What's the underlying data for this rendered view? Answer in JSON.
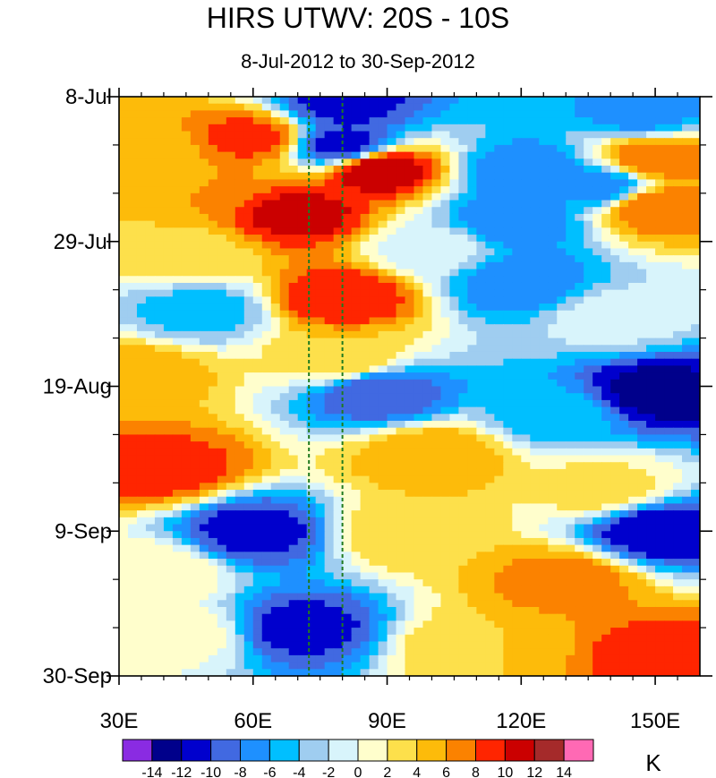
{
  "chart_data": {
    "type": "heatmap",
    "title": "HIRS UTWV: 20S - 10S",
    "subtitle": "8-Jul-2012 to 30-Sep-2012",
    "x_axis": {
      "range": [
        30,
        160
      ],
      "ticks": [
        {
          "value": 30,
          "label": "30E"
        },
        {
          "value": 60,
          "label": "60E"
        },
        {
          "value": 90,
          "label": "90E"
        },
        {
          "value": 120,
          "label": "120E"
        },
        {
          "value": 150,
          "label": "150E"
        }
      ]
    },
    "y_axis": {
      "range_days": [
        0,
        84
      ],
      "direction": "time increases downward",
      "ticks": [
        {
          "value": 0,
          "label": "8-Jul"
        },
        {
          "value": 21,
          "label": "29-Jul"
        },
        {
          "value": 42,
          "label": "19-Aug"
        },
        {
          "value": 63,
          "label": "9-Sep"
        },
        {
          "value": 84,
          "label": "30-Sep"
        }
      ]
    },
    "reference_lines_lon": [
      72.5,
      80
    ],
    "colorbar": {
      "unit": "K",
      "levels": [
        -14,
        -12,
        -10,
        -8,
        -6,
        -4,
        -2,
        0,
        2,
        4,
        6,
        8,
        10,
        12,
        14
      ],
      "labels": [
        "-14",
        "-12",
        "-10",
        "-8",
        "-6",
        "-4",
        "-2",
        "0",
        "2",
        "4",
        "6",
        "8",
        "10",
        "12",
        "14"
      ],
      "colors": [
        "#8a2be2",
        "#00008b",
        "#0000cd",
        "#4169e1",
        "#1e90ff",
        "#00bfff",
        "#9fcdf0",
        "#d8f4fb",
        "#fffecc",
        "#fde04b",
        "#fdbb0a",
        "#fb8200",
        "#ff2500",
        "#cb0000",
        "#a52a2a",
        "#ff69b4"
      ]
    },
    "features": [
      {
        "lon": 80,
        "day": 1,
        "value": -11
      },
      {
        "lon": 147,
        "day": 2.5,
        "value": -7
      },
      {
        "lon": 60,
        "day": 6,
        "value": 9
      },
      {
        "lon": 80,
        "day": 7,
        "value": -11
      },
      {
        "lon": 37,
        "day": 8,
        "value": 5
      },
      {
        "lon": 150,
        "day": 9,
        "value": 8
      },
      {
        "lon": 88,
        "day": 10.5,
        "value": 12
      },
      {
        "lon": 122,
        "day": 11,
        "value": -8
      },
      {
        "lon": 50,
        "day": 13,
        "value": 6
      },
      {
        "lon": 138,
        "day": 13,
        "value": -7
      },
      {
        "lon": 70,
        "day": 17,
        "value": 11
      },
      {
        "lon": 118,
        "day": 18,
        "value": -8
      },
      {
        "lon": 150,
        "day": 16,
        "value": 8
      },
      {
        "lon": 45,
        "day": 23,
        "value": 3
      },
      {
        "lon": 100,
        "day": 22,
        "value": -1
      },
      {
        "lon": 80,
        "day": 29,
        "value": 10
      },
      {
        "lon": 120,
        "day": 27,
        "value": -8
      },
      {
        "lon": 48,
        "day": 31,
        "value": -5
      },
      {
        "lon": 140,
        "day": 32,
        "value": -1
      },
      {
        "lon": 35,
        "day": 40,
        "value": 5
      },
      {
        "lon": 80,
        "day": 38,
        "value": 4
      },
      {
        "lon": 88,
        "day": 43,
        "value": -10
      },
      {
        "lon": 150,
        "day": 43,
        "value": -13
      },
      {
        "lon": 128,
        "day": 46,
        "value": -5
      },
      {
        "lon": 40,
        "day": 54,
        "value": 9
      },
      {
        "lon": 100,
        "day": 52,
        "value": 6
      },
      {
        "lon": 138,
        "day": 57,
        "value": 3
      },
      {
        "lon": 60,
        "day": 63,
        "value": -11
      },
      {
        "lon": 150,
        "day": 63,
        "value": -12
      },
      {
        "lon": 95,
        "day": 63,
        "value": 4
      },
      {
        "lon": 38,
        "day": 69,
        "value": 2
      },
      {
        "lon": 130,
        "day": 70,
        "value": 7
      },
      {
        "lon": 70,
        "day": 77,
        "value": -11
      },
      {
        "lon": 45,
        "day": 78,
        "value": 1
      },
      {
        "lon": 110,
        "day": 80,
        "value": 4
      },
      {
        "lon": 153,
        "day": 81,
        "value": 9
      }
    ]
  }
}
